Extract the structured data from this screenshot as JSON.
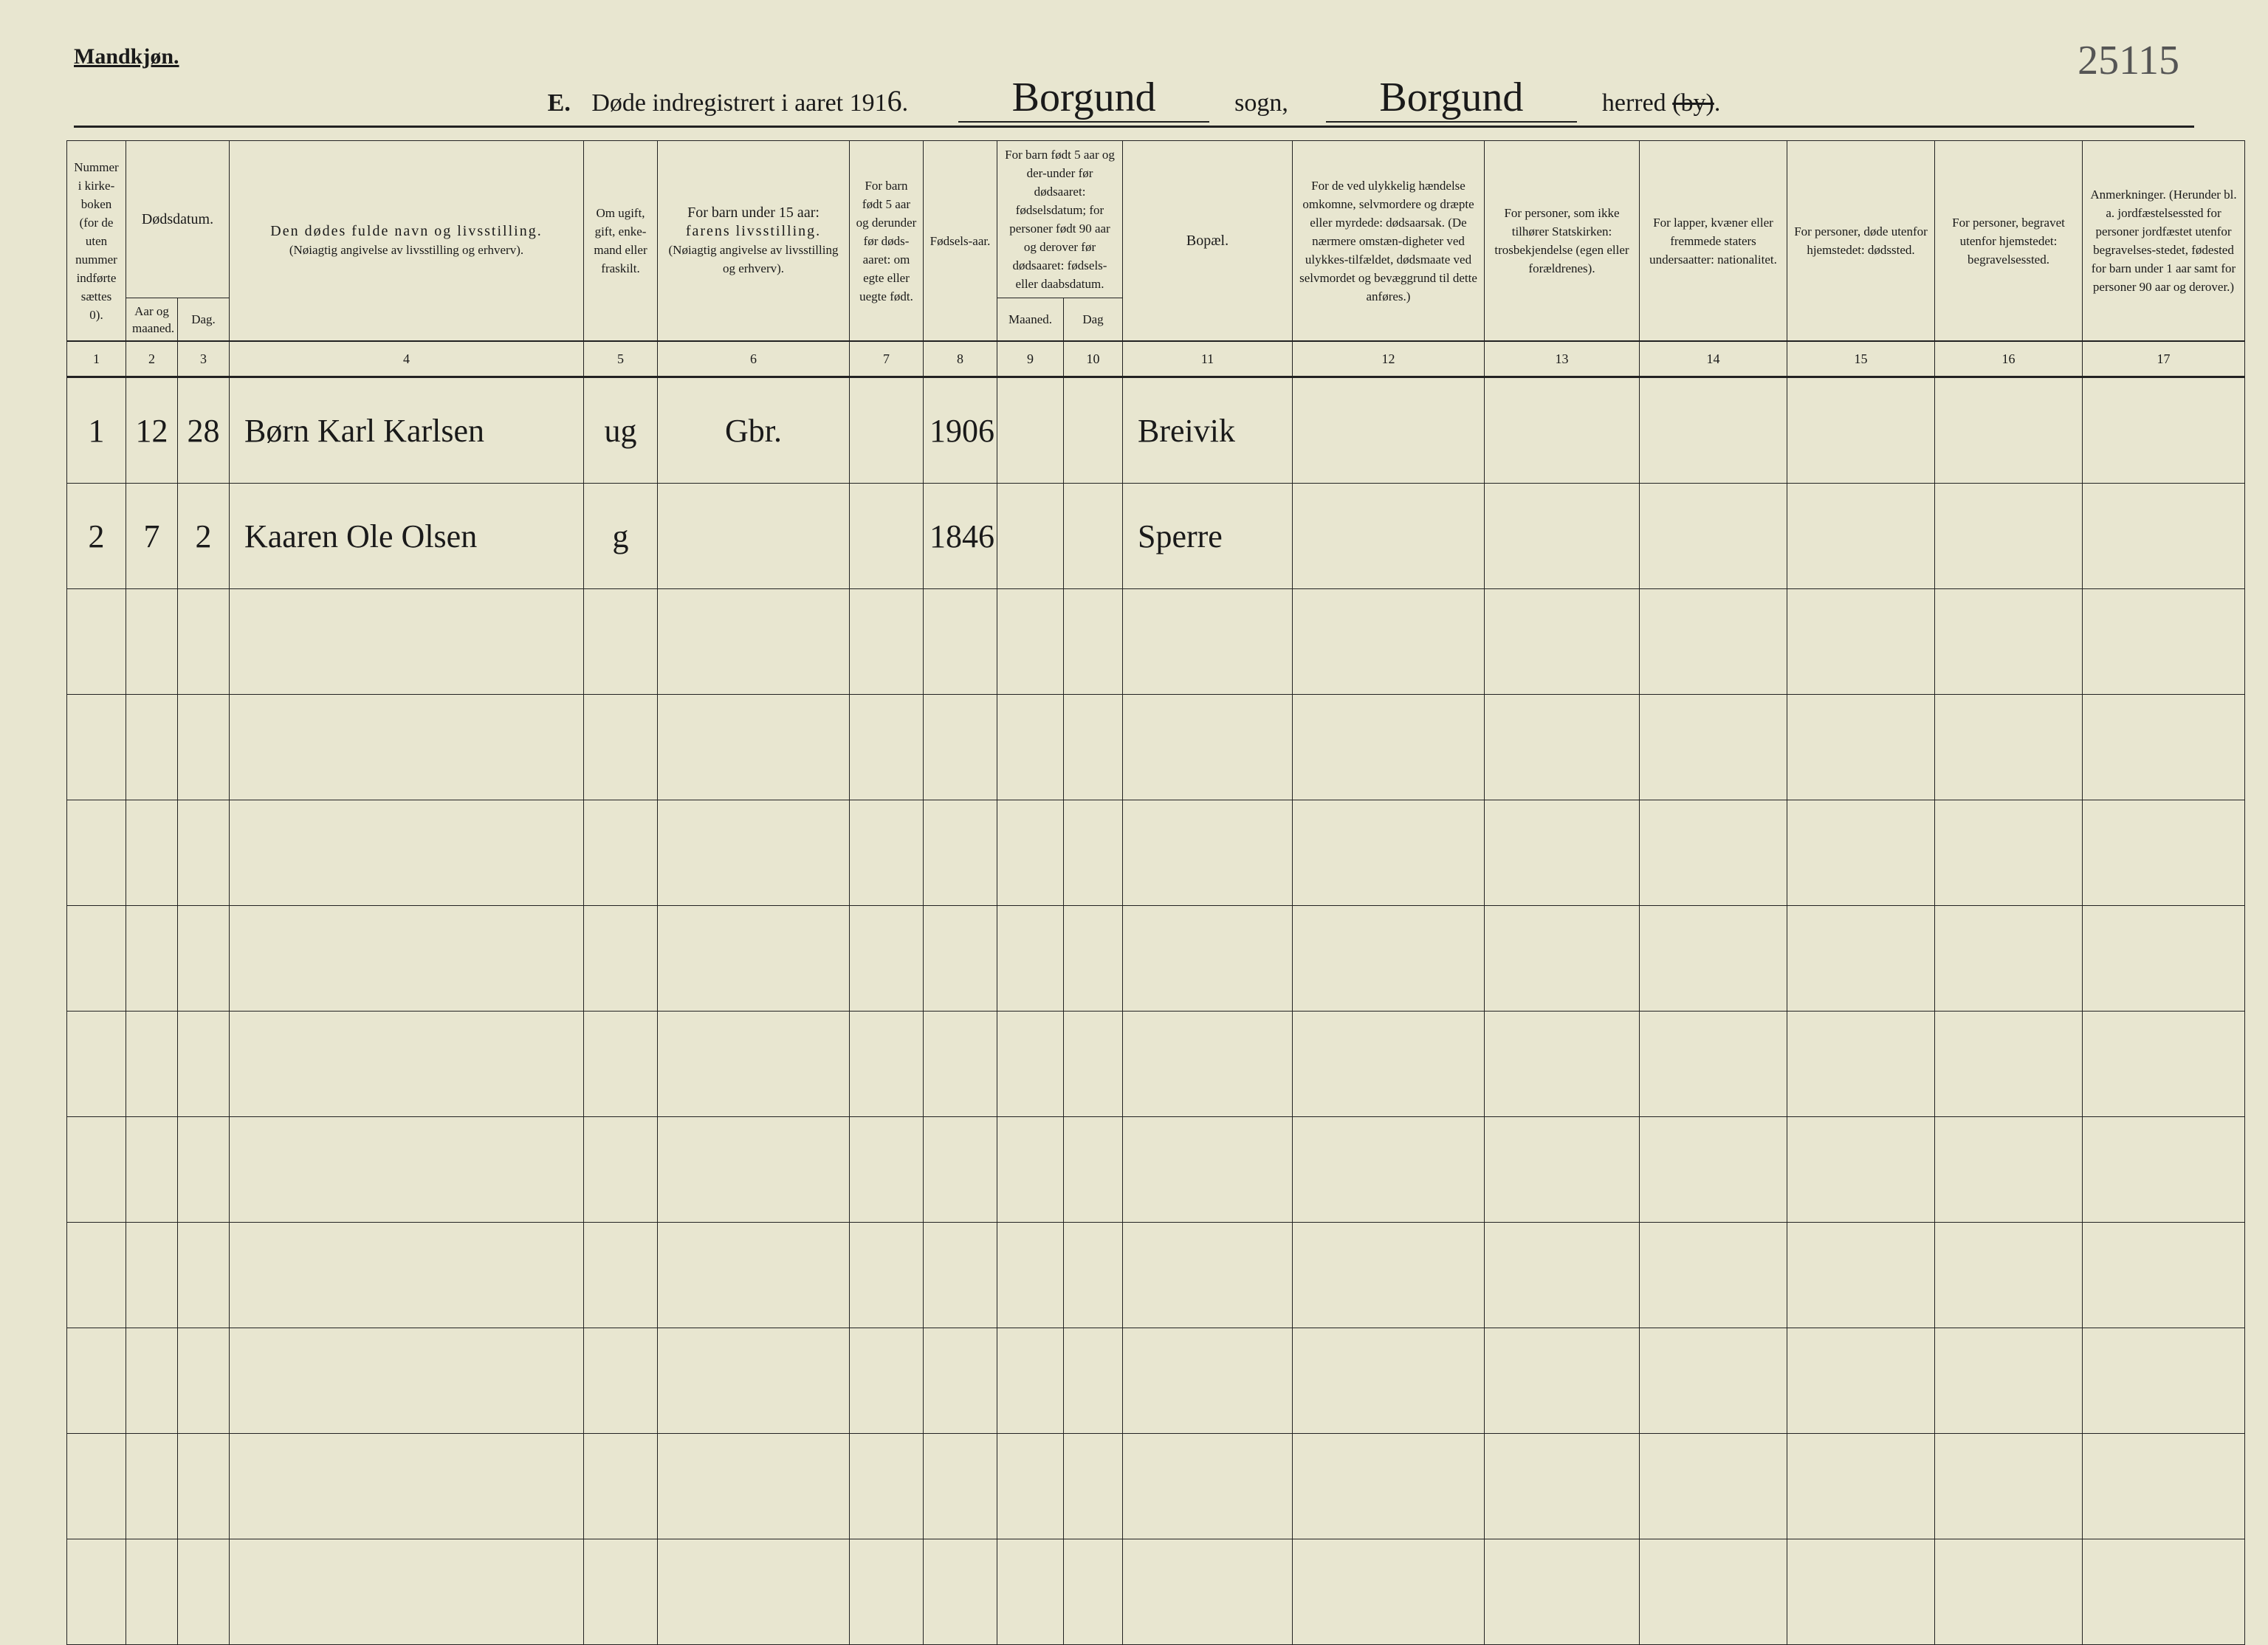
{
  "meta": {
    "gender_label": "Mandkjøn.",
    "page_number_hand": "25115"
  },
  "title": {
    "section_letter": "E.",
    "base_text": "Døde indregistrert i aaret 191",
    "year_last_digit_hand": "6",
    "period": ".",
    "sogn_hand": "Borgund",
    "sogn_label": "sogn,",
    "herred_hand": "Borgund",
    "herred_label_pre": "herred",
    "herred_label_struck": "(by)",
    "herred_label_post": "."
  },
  "columns": {
    "c1": "Nummer i kirke-boken (for de uten nummer indførte sættes 0).",
    "c2_group": "Dødsdatum.",
    "c2": "Aar og maaned.",
    "c3": "Dag.",
    "c4_a": "Den dødes fulde navn og livsstilling.",
    "c4_b": "(Nøiagtig angivelse av livsstilling og erhverv).",
    "c5": "Om ugift, gift, enke-mand eller fraskilt.",
    "c6_a": "For barn under 15 aar:",
    "c6_b": "farens livsstilling.",
    "c6_c": "(Nøiagtig angivelse av livsstilling og erhverv).",
    "c7": "For barn født 5 aar og derunder før døds-aaret: om egte eller uegte født.",
    "c8": "Fødsels-aar.",
    "c9_10_top": "For barn født 5 aar og der-under før dødsaaret: fødselsdatum; for personer født 90 aar og derover før dødsaaret: fødsels- eller daabsdatum.",
    "c9": "Maaned.",
    "c10": "Dag",
    "c11": "Bopæl.",
    "c12": "For de ved ulykkelig hændelse omkomne, selvmordere og dræpte eller myrdede: dødsaarsak. (De nærmere omstæn-digheter ved ulykkes-tilfældet, dødsmaate ved selvmordet og bevæggrund til dette anføres.)",
    "c13": "For personer, som ikke tilhører Statskirken: trosbekjendelse (egen eller forældrenes).",
    "c14": "For lapper, kvæner eller fremmede staters undersaatter: nationalitet.",
    "c15": "For personer, døde utenfor hjemstedet: dødssted.",
    "c16": "For personer, begravet utenfor hjemstedet: begravelsessted.",
    "c17": "Anmerkninger. (Herunder bl. a. jordfæstelsessted for personer jordfæstet utenfor begravelses-stedet, fødested for barn under 1 aar samt for personer 90 aar og derover.)",
    "nums": [
      "1",
      "2",
      "3",
      "4",
      "5",
      "6",
      "7",
      "8",
      "9",
      "10",
      "11",
      "12",
      "13",
      "14",
      "15",
      "16",
      "17"
    ]
  },
  "rows": [
    {
      "num": "1",
      "aar_maaned": "12",
      "dag": "28",
      "name": "Børn Karl Karlsen",
      "status": "ug",
      "faren": "Gbr.",
      "c7": "",
      "fodselsaar": "1906",
      "c9": "",
      "c10": "",
      "bopael": "Breivik",
      "c12": "",
      "c13": "",
      "c14": "",
      "c15": "",
      "c16": "",
      "c17": ""
    },
    {
      "num": "2",
      "aar_maaned": "7",
      "dag": "2",
      "name": "Kaaren Ole Olsen",
      "status": "g",
      "faren": "",
      "c7": "",
      "fodselsaar": "1846",
      "c9": "",
      "c10": "",
      "bopael": "Sperre",
      "c12": "",
      "c13": "",
      "c14": "",
      "c15": "",
      "c16": "",
      "c17": ""
    }
  ],
  "empty_row_count": 10,
  "colors": {
    "paper": "#e8e6d0",
    "ink": "#1a1a1a",
    "pencil": "#555555",
    "rule": "#222222"
  }
}
